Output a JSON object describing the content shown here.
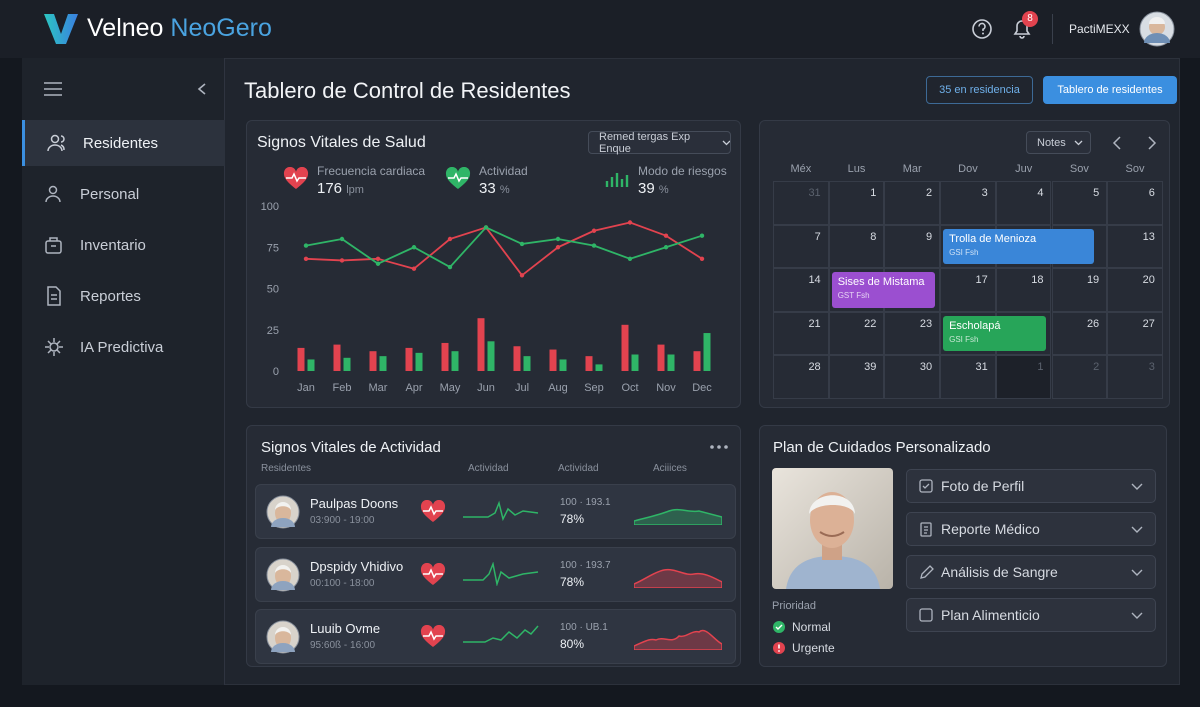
{
  "header": {
    "logo_primary": "Velneo",
    "logo_secondary": "NeoGero",
    "notifications": "8",
    "user": "PactiMEXX"
  },
  "sidebar": {
    "items": [
      "Residentes",
      "Personal",
      "Inventario",
      "Reportes",
      "IA Predictiva"
    ]
  },
  "page": {
    "title": "Tablero de Control de Residentes",
    "badge": "35 en residencia",
    "button": "Tablero de residentes"
  },
  "vitals": {
    "title": "Signos Vitales de Salud",
    "filter": "Remed tergas Exp Enque",
    "stats": [
      {
        "label": "Frecuencia cardiaca",
        "value": "176",
        "unit": "lpm"
      },
      {
        "label": "Actividad",
        "value": "33",
        "unit": "%"
      },
      {
        "label": "Modo de riesgos",
        "value": "39",
        "unit": "%"
      }
    ]
  },
  "chart_data": {
    "type": "combo",
    "categories": [
      "Jan",
      "Feb",
      "Mar",
      "Apr",
      "May",
      "Jun",
      "Jul",
      "Aug",
      "Sep",
      "Oct",
      "Nov",
      "Dec"
    ],
    "ylim": [
      0,
      100
    ],
    "yticks": [
      0,
      25,
      50,
      75,
      100
    ],
    "grid": false,
    "series": [
      {
        "type": "line",
        "color": "#e2434f",
        "values": [
          68,
          67,
          68,
          62,
          80,
          87,
          58,
          75,
          85,
          90,
          82,
          68
        ]
      },
      {
        "type": "line",
        "color": "#2fb567",
        "values": [
          76,
          80,
          65,
          75,
          63,
          87,
          77,
          80,
          76,
          68,
          75,
          82
        ]
      },
      {
        "type": "bar",
        "color": "#e2434f",
        "values": [
          14,
          16,
          12,
          14,
          17,
          32,
          15,
          13,
          9,
          28,
          16,
          12
        ]
      },
      {
        "type": "bar",
        "color": "#2fb567",
        "values": [
          7,
          8,
          9,
          11,
          12,
          18,
          9,
          7,
          4,
          10,
          10,
          23
        ]
      }
    ]
  },
  "calendar": {
    "view": "Notes",
    "weekdays": [
      "Méx",
      "Lus",
      "Mar",
      "Dov",
      "Juv",
      "Sov",
      "Sov"
    ],
    "rows": [
      [
        "31",
        "1",
        "2",
        "3",
        "4",
        "5",
        "6"
      ],
      [
        "7",
        "8",
        "9",
        null,
        null,
        null,
        "13"
      ],
      [
        "14",
        null,
        null,
        "17",
        "18",
        "19",
        "20"
      ],
      [
        "21",
        "22",
        "23",
        null,
        null,
        "26",
        "27"
      ],
      [
        "28",
        "39",
        "30",
        "31",
        "1",
        "2",
        "3"
      ]
    ],
    "events": [
      {
        "title": "Trolla de Menioza",
        "detail": "GSI Fsh",
        "color": "#3a86d8"
      },
      {
        "title": "Sises de Mistama",
        "detail": "GST Fsh",
        "color": "#9b4fd0"
      },
      {
        "title": "Escholapá",
        "detail": "GSI Fsh",
        "color": "#27a559"
      }
    ]
  },
  "activity": {
    "title": "Signos Vitales de Actividad",
    "columns": [
      "Residentes",
      "Actividad",
      "Actividad",
      "Aciiices"
    ],
    "rows": [
      {
        "name": "Paulpas Doons",
        "time": "03:900 - 19:00",
        "range": "100 · 193.1",
        "percent": "78%"
      },
      {
        "name": "Dpspidy Vhidivo",
        "time": "00:100 - 18:00",
        "range": "100 · 193.7",
        "percent": "78%"
      },
      {
        "name": "Luuib Ovme",
        "time": "95:60ß - 16:00",
        "range": "100 · UB.1",
        "percent": "80%"
      }
    ]
  },
  "care_plan": {
    "title": "Plan de Cuidados Personalizado",
    "items": [
      "Foto de Perfil",
      "Reporte Médico",
      "Análisis de Sangre",
      "Plan Alimenticio"
    ],
    "priority_label": "Prioridad",
    "priorities": [
      "Normal",
      "Urgente"
    ]
  }
}
